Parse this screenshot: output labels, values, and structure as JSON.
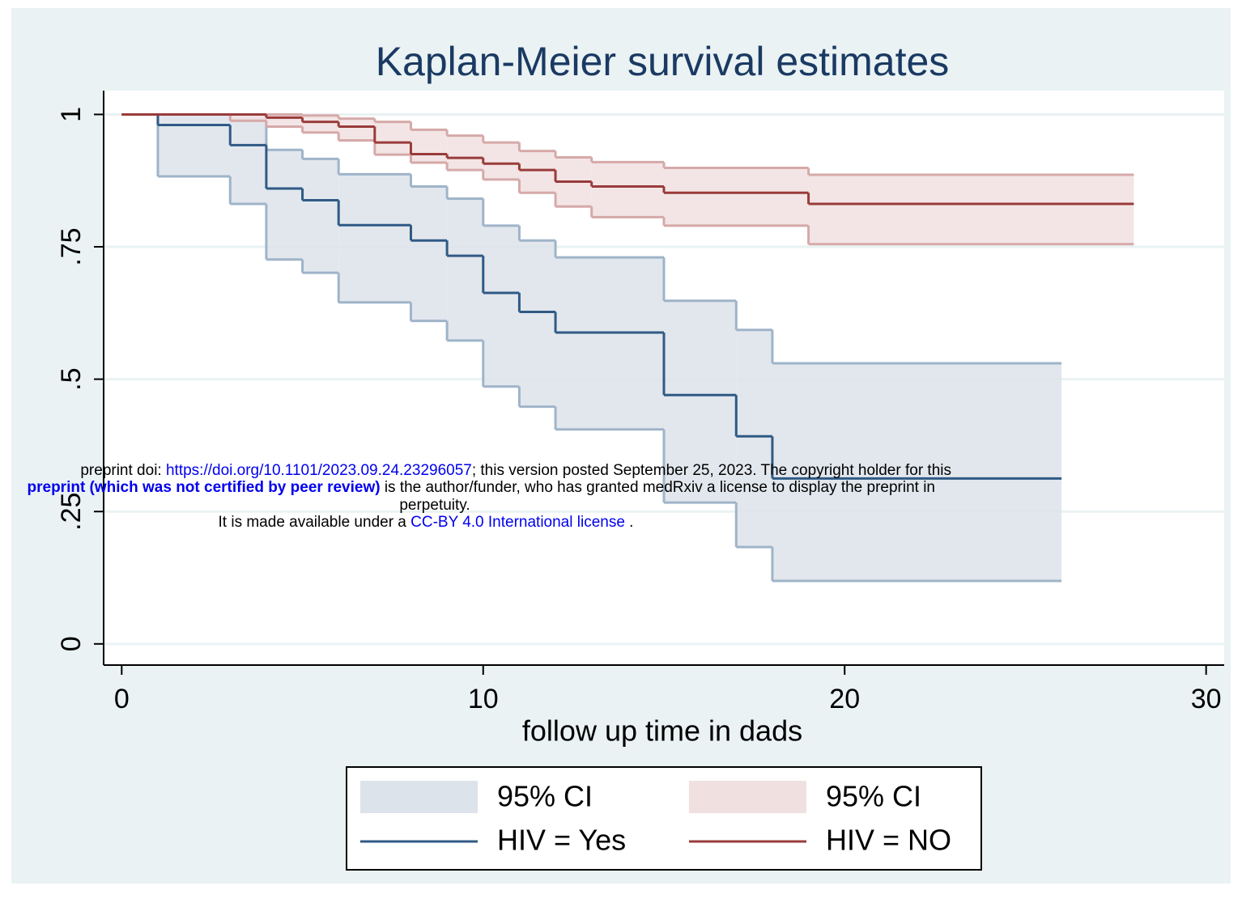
{
  "chart_data": {
    "type": "km",
    "title": "Kaplan-Meier survival estimates",
    "x_label": "follow up time in dads",
    "xlim": [
      -0.5,
      30.5
    ],
    "xticks": [
      0,
      10,
      20,
      30
    ],
    "ylim": [
      -0.04,
      1.045
    ],
    "yticks": [
      0,
      {
        "value": 0.25,
        "label": ".25"
      },
      {
        "value": 0.5,
        "label": ".5"
      },
      {
        "value": 0.75,
        "label": ".75"
      },
      1
    ],
    "ygrid": true,
    "series": [
      {
        "name": "HIV = Yes",
        "color": "#2f5a85",
        "ci_name": "95% CI",
        "ci_color": "#dde3ea",
        "ci_edge": "#9fb4c9",
        "x": [
          0,
          1,
          3,
          4,
          5,
          6,
          8,
          9,
          10,
          11,
          12,
          15,
          17,
          18
        ],
        "follow_up_end": 26,
        "values": [
          1,
          0.98,
          0.942,
          0.86,
          0.838,
          0.791,
          0.762,
          0.733,
          0.663,
          0.627,
          0.588,
          0.47,
          0.392,
          0.3125
        ],
        "lower": [
          1,
          0.883,
          0.831,
          0.726,
          0.701,
          0.645,
          0.61,
          0.573,
          0.486,
          0.448,
          0.405,
          0.267,
          0.183,
          0.119
        ],
        "upper": [
          1,
          1,
          1,
          0.933,
          0.916,
          0.887,
          0.864,
          0.841,
          0.79,
          0.762,
          0.73,
          0.648,
          0.593,
          0.53
        ]
      },
      {
        "name": "HIV = NO",
        "color": "#9a3b3b",
        "ci_name": "95% CI",
        "ci_color": "#f1e0e0",
        "ci_edge": "#d6a9a9",
        "x": [
          0,
          3,
          4,
          5,
          6,
          7,
          8,
          9,
          10,
          11,
          12,
          13,
          15,
          19
        ],
        "follow_up_end": 28,
        "values": [
          1,
          1,
          0.994,
          0.986,
          0.977,
          0.947,
          0.925,
          0.918,
          0.907,
          0.895,
          0.873,
          0.864,
          0.852,
          0.831
        ],
        "lower": [
          1,
          0.988,
          0.977,
          0.966,
          0.951,
          0.924,
          0.909,
          0.895,
          0.877,
          0.852,
          0.826,
          0.806,
          0.79,
          0.755
        ],
        "upper": [
          1,
          1,
          1,
          0.998,
          0.992,
          0.986,
          0.971,
          0.96,
          0.947,
          0.931,
          0.919,
          0.91,
          0.899,
          0.886
        ]
      }
    ]
  },
  "watermark": {
    "line1": [
      "preprint doi: ",
      "https://doi.org/10.1101/2023.09.24.23296057",
      "; this version posted September 25, 2023. The copyright holder for this"
    ],
    "line2": [
      "preprint (which was not certified by peer review)",
      " is the author/funder, who has granted medRxiv a license to display the preprint in"
    ],
    "line3": "perpetuity.",
    "line4": [
      "It is made available under a ",
      "CC-BY 4.0 International license",
      " ."
    ]
  }
}
